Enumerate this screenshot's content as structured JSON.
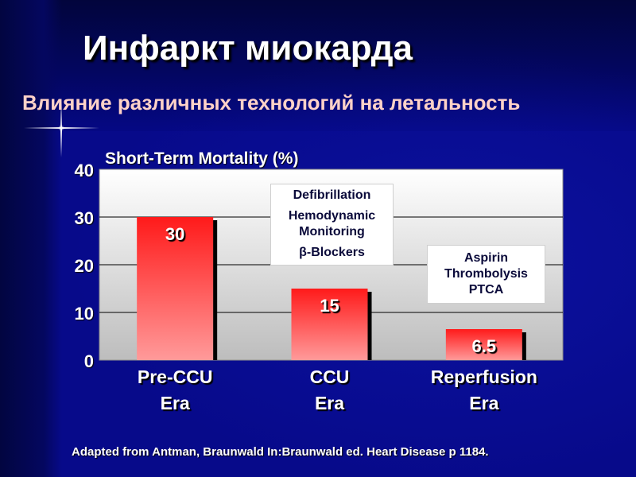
{
  "slide": {
    "title": "Инфаркт миокарда",
    "subtitle": "Влияние различных технологий на летальность",
    "footer": "Adapted from Antman, Braunwald In:Braunwald ed. Heart Disease p 1184."
  },
  "annotations": {
    "ccu_box": [
      "Defibrillation",
      "Hemodynamic",
      "Monitoring",
      "β-Blockers"
    ],
    "reperfusion_box": [
      "Aspirin",
      "Thrombolysis",
      "PTCA"
    ]
  },
  "colors": {
    "bar_top": "#ff1a1a",
    "bar_bottom": "#ff9a9a",
    "plot_bg_top": "#ffffff",
    "plot_bg_bottom": "#bdbdbd",
    "text_light": "#ffffff",
    "subtitle": "#ffd2c8"
  },
  "chart_data": {
    "type": "bar",
    "title": "Short-Term Mortality (%)",
    "categories": [
      [
        "Pre-CCU",
        "Era"
      ],
      [
        "CCU",
        "Era"
      ],
      [
        "Reperfusion",
        "Era"
      ]
    ],
    "values": [
      30,
      15,
      6.5
    ],
    "data_labels": [
      "30",
      "15",
      "6.5"
    ],
    "yticks": [
      0,
      10,
      20,
      30,
      40
    ],
    "ylim": [
      0,
      40
    ],
    "grid": true,
    "legend": "none"
  }
}
